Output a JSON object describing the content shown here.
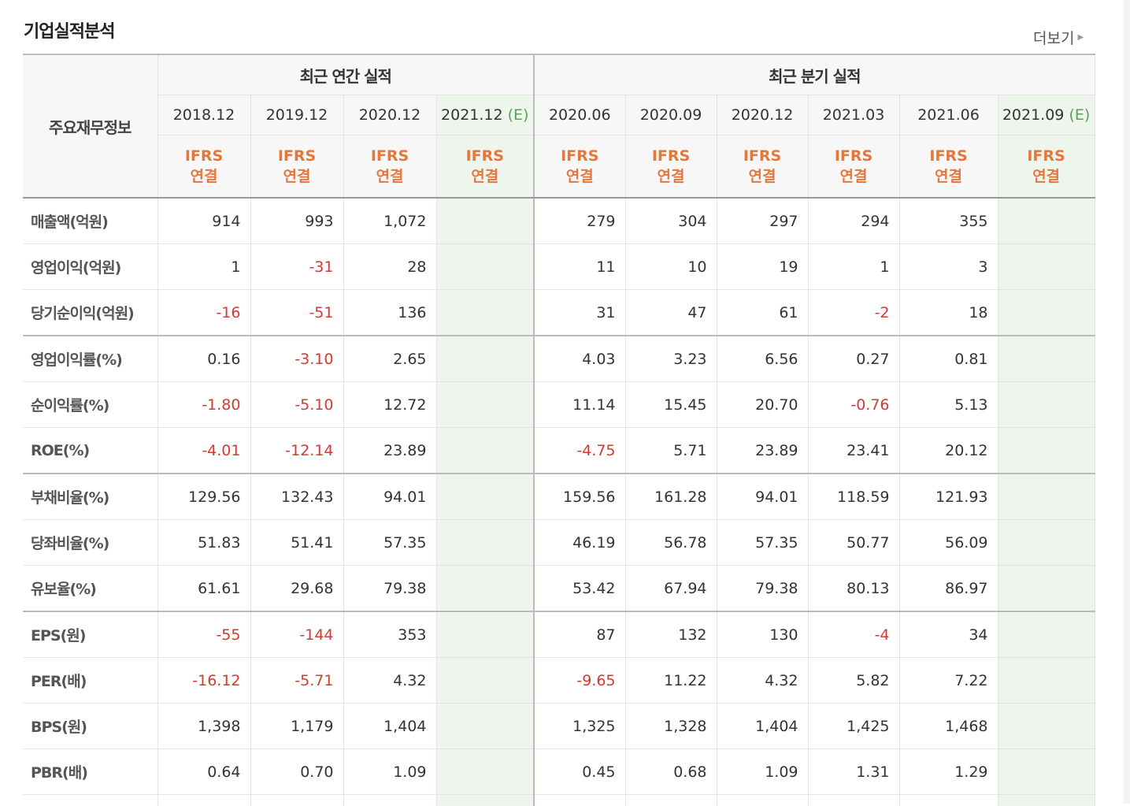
{
  "section": {
    "title": "기업실적분석",
    "more_label": "더보기"
  },
  "table": {
    "label_header": "주요재무정보",
    "group_annual": "최근 연간 실적",
    "group_quarterly": "최근 분기 실적",
    "periods": [
      "2018.12",
      "2019.12",
      "2020.12",
      "2021.12",
      "2020.06",
      "2020.09",
      "2020.12",
      "2021.03",
      "2021.06",
      "2021.09"
    ],
    "estimate_tag": "(E)",
    "ifrs_line1": "IFRS",
    "ifrs_line2": "연결",
    "rows": [
      {
        "label": "매출액(억원)",
        "values": [
          "914",
          "993",
          "1,072",
          "",
          "279",
          "304",
          "297",
          "294",
          "355",
          ""
        ]
      },
      {
        "label": "영업이익(억원)",
        "values": [
          "1",
          "-31",
          "28",
          "",
          "11",
          "10",
          "19",
          "1",
          "3",
          ""
        ]
      },
      {
        "label": "당기순이익(억원)",
        "values": [
          "-16",
          "-51",
          "136",
          "",
          "31",
          "47",
          "61",
          "-2",
          "18",
          ""
        ]
      },
      {
        "label": "영업이익률(%)",
        "values": [
          "0.16",
          "-3.10",
          "2.65",
          "",
          "4.03",
          "3.23",
          "6.56",
          "0.27",
          "0.81",
          ""
        ]
      },
      {
        "label": "순이익률(%)",
        "values": [
          "-1.80",
          "-5.10",
          "12.72",
          "",
          "11.14",
          "15.45",
          "20.70",
          "-0.76",
          "5.13",
          ""
        ]
      },
      {
        "label": "ROE(%)",
        "values": [
          "-4.01",
          "-12.14",
          "23.89",
          "",
          "-4.75",
          "5.71",
          "23.89",
          "23.41",
          "20.12",
          ""
        ]
      },
      {
        "label": "부채비율(%)",
        "values": [
          "129.56",
          "132.43",
          "94.01",
          "",
          "159.56",
          "161.28",
          "94.01",
          "118.59",
          "121.93",
          ""
        ]
      },
      {
        "label": "당좌비율(%)",
        "values": [
          "51.83",
          "51.41",
          "57.35",
          "",
          "46.19",
          "56.78",
          "57.35",
          "50.77",
          "56.09",
          ""
        ]
      },
      {
        "label": "유보율(%)",
        "values": [
          "61.61",
          "29.68",
          "79.38",
          "",
          "53.42",
          "67.94",
          "79.38",
          "80.13",
          "86.97",
          ""
        ]
      },
      {
        "label": "EPS(원)",
        "values": [
          "-55",
          "-144",
          "353",
          "",
          "87",
          "132",
          "130",
          "-4",
          "34",
          ""
        ]
      },
      {
        "label": "PER(배)",
        "values": [
          "-16.12",
          "-5.71",
          "4.32",
          "",
          "-9.65",
          "11.22",
          "4.32",
          "5.82",
          "7.22",
          ""
        ]
      },
      {
        "label": "BPS(원)",
        "values": [
          "1,398",
          "1,179",
          "1,404",
          "",
          "1,325",
          "1,328",
          "1,404",
          "1,425",
          "1,468",
          ""
        ]
      },
      {
        "label": "PBR(배)",
        "values": [
          "0.64",
          "0.70",
          "1.09",
          "",
          "0.45",
          "0.68",
          "1.09",
          "1.31",
          "1.29",
          ""
        ]
      }
    ]
  },
  "colors": {
    "negative": "#d23a32",
    "ifrs": "#e6773c",
    "estimate_bg": "#eef5ec",
    "estimate_tag": "#5aa05a"
  }
}
